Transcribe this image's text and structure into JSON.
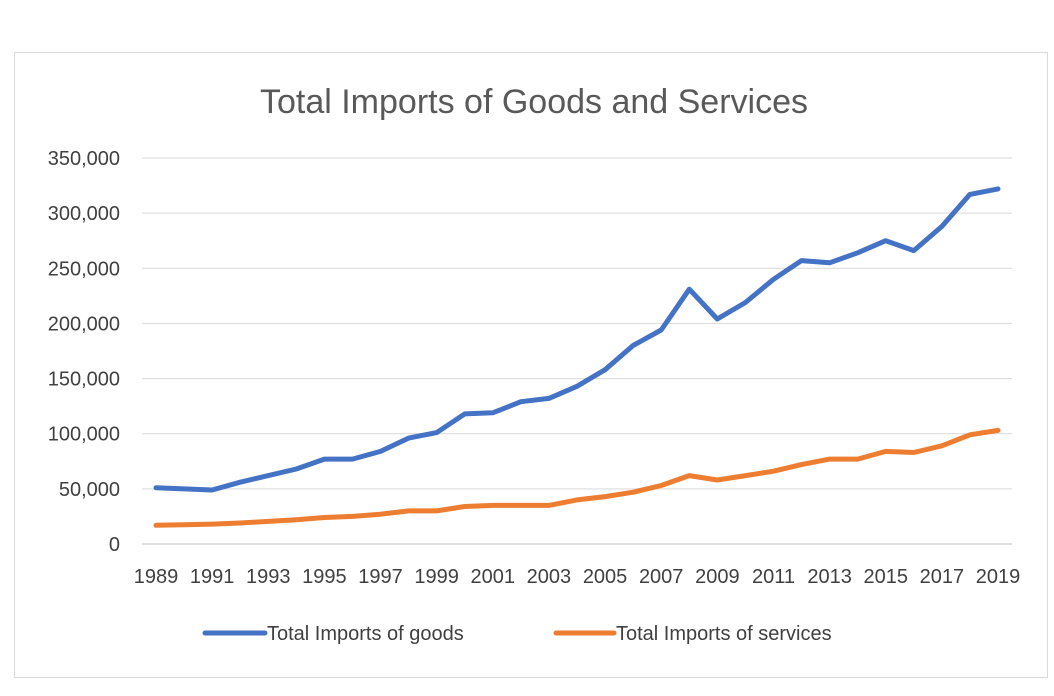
{
  "chart_data": {
    "type": "line",
    "title": "Total Imports of Goods and Services",
    "xlabel": "",
    "ylabel": "",
    "ylim": [
      0,
      350000
    ],
    "y_ticks": [
      0,
      50000,
      100000,
      150000,
      200000,
      250000,
      300000,
      350000
    ],
    "y_tick_labels": [
      "0",
      "50,000",
      "100,000",
      "150,000",
      "200,000",
      "250,000",
      "300,000",
      "350,000"
    ],
    "x": [
      1989,
      1990,
      1991,
      1992,
      1993,
      1994,
      1995,
      1996,
      1997,
      1998,
      1999,
      2000,
      2001,
      2002,
      2003,
      2004,
      2005,
      2006,
      2007,
      2008,
      2009,
      2010,
      2011,
      2012,
      2013,
      2014,
      2015,
      2016,
      2017,
      2018,
      2019
    ],
    "x_tick_labels": [
      "1989",
      "1991",
      "1993",
      "1995",
      "1997",
      "1999",
      "2001",
      "2003",
      "2005",
      "2007",
      "2009",
      "2011",
      "2013",
      "2015",
      "2017",
      "2019"
    ],
    "grid": true,
    "legend_position": "bottom",
    "series": [
      {
        "name": "Total Imports of goods",
        "color": "#4472c4",
        "values": [
          51000,
          50000,
          49000,
          56000,
          62000,
          68000,
          77000,
          77000,
          84000,
          96000,
          101000,
          118000,
          119000,
          129000,
          132000,
          143000,
          158000,
          180000,
          194000,
          231000,
          204000,
          219000,
          240000,
          257000,
          255000,
          264000,
          275000,
          266000,
          288000,
          317000,
          322000
        ]
      },
      {
        "name": "Total Imports of services",
        "color": "#ed7d31",
        "values": [
          17000,
          17500,
          18000,
          19000,
          20500,
          22000,
          24000,
          25000,
          27000,
          30000,
          30000,
          34000,
          35000,
          35000,
          35000,
          40000,
          43000,
          47000,
          53000,
          62000,
          58000,
          62000,
          66000,
          72000,
          77000,
          77000,
          84000,
          83000,
          89000,
          99000,
          103000
        ]
      }
    ]
  }
}
